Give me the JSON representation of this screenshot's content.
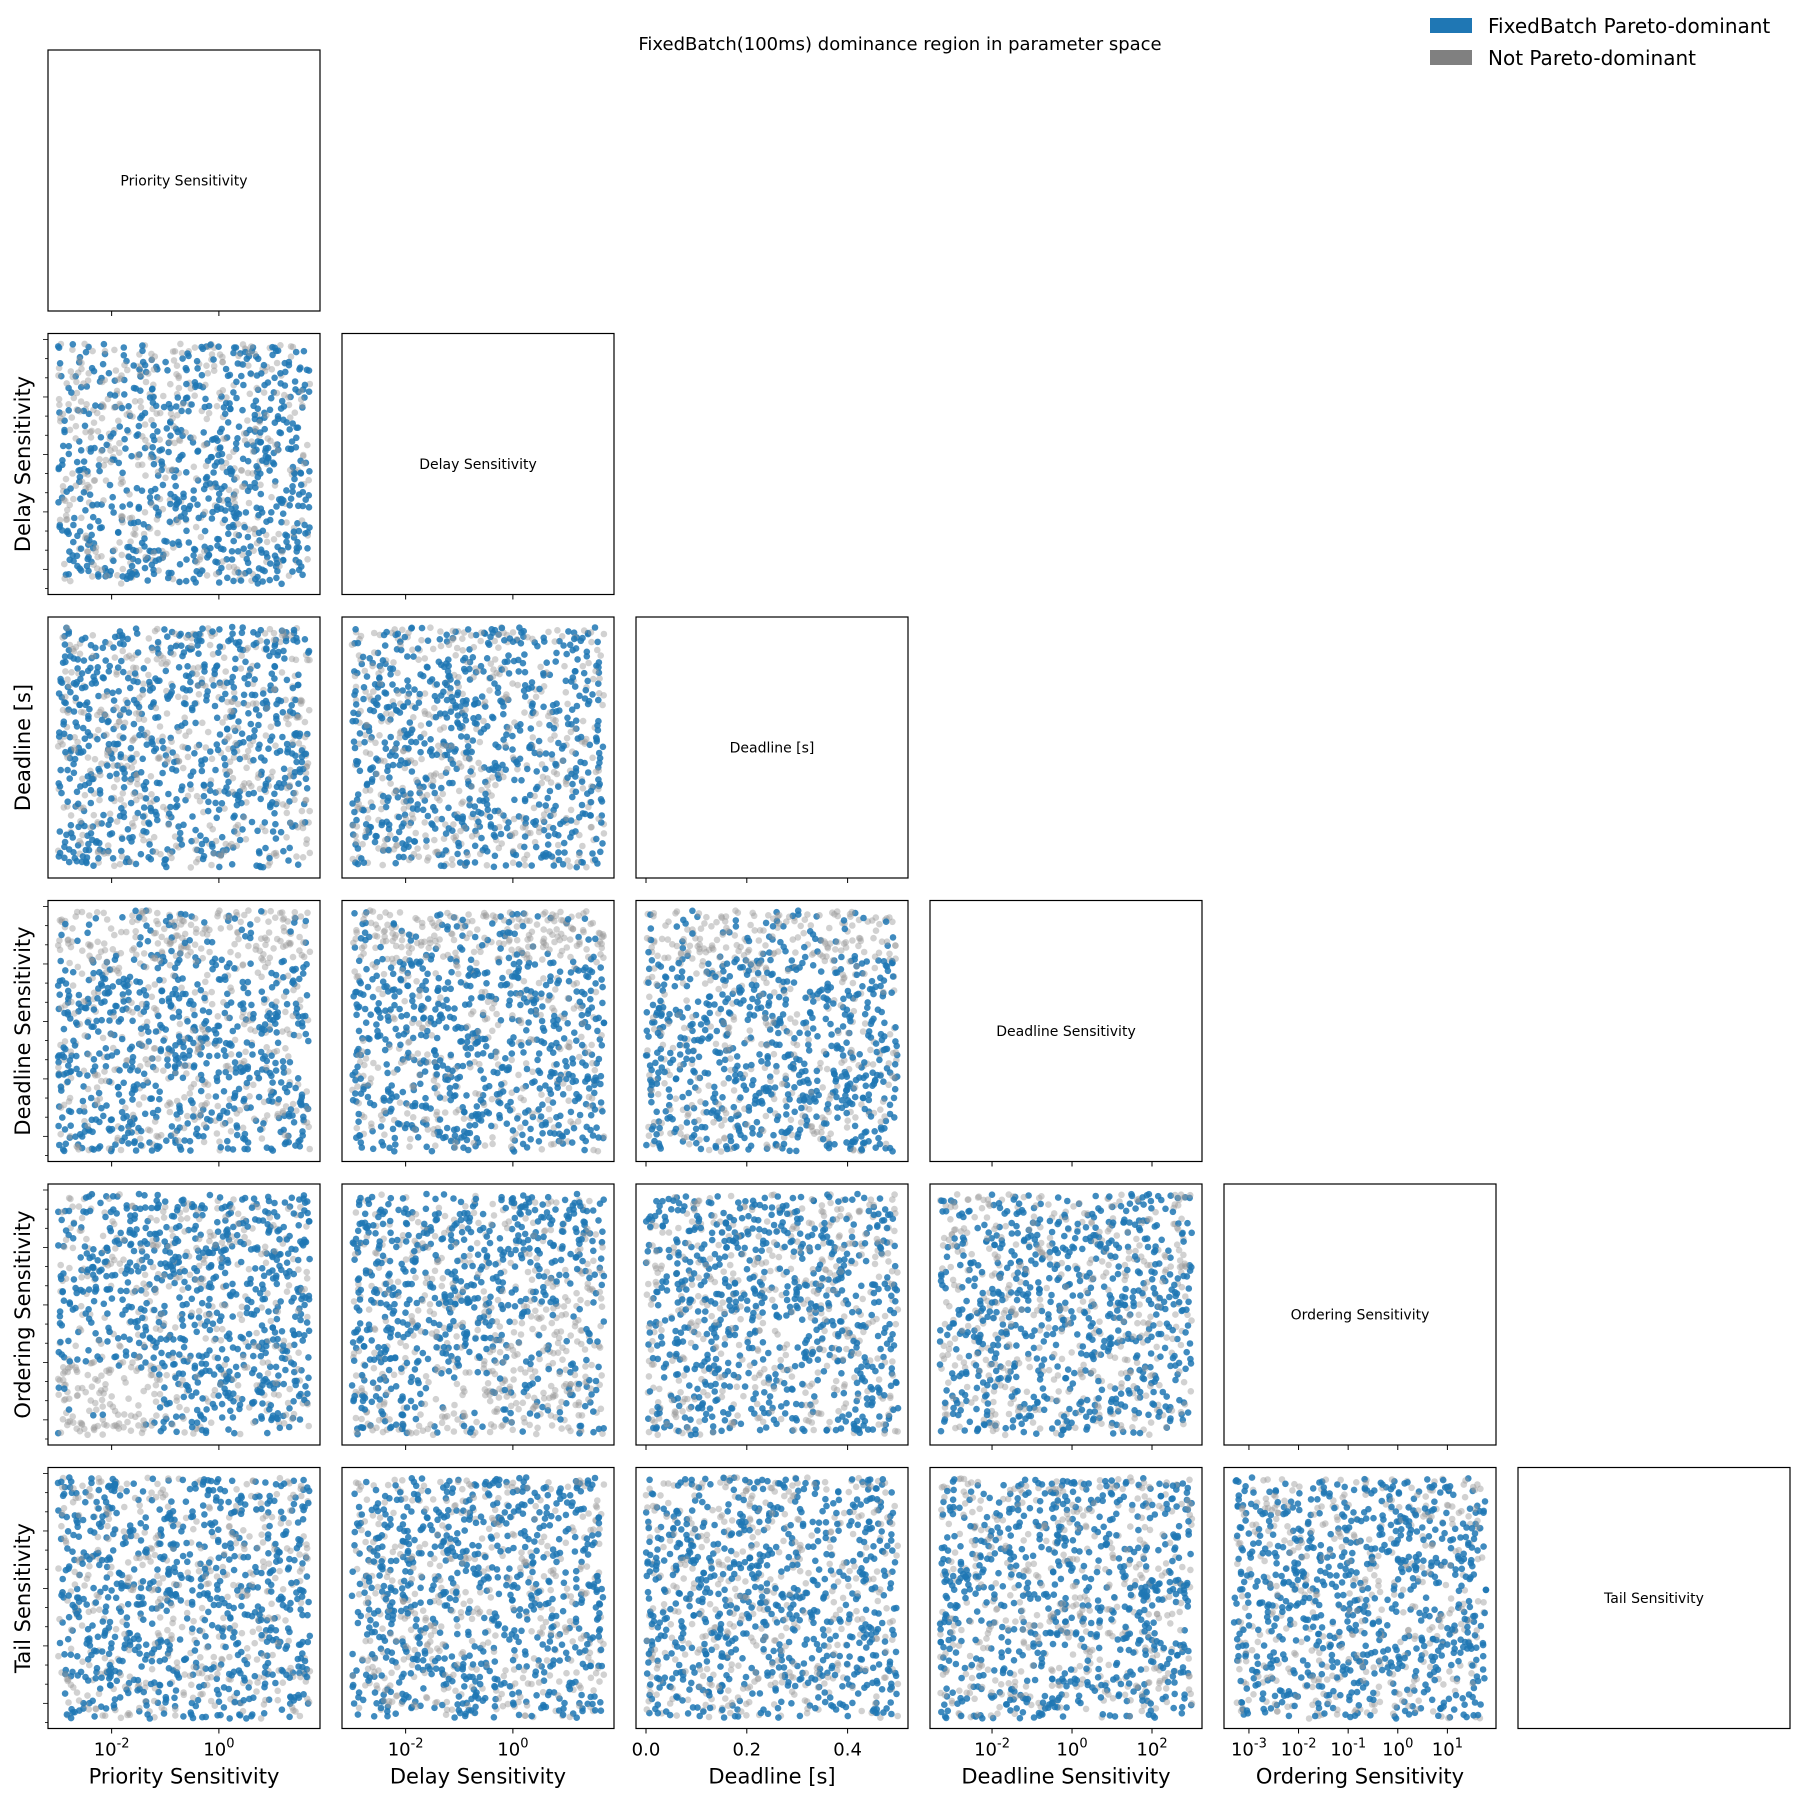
{
  "chart_data": {
    "type": "scatter",
    "title": "FixedBatch(100ms) dominance region in parameter space",
    "legend": {
      "placement": "top-right",
      "entries": [
        {
          "label": "FixedBatch Pareto-dominant",
          "color": "#1f77b4"
        },
        {
          "label": "Not Pareto-dominant",
          "color": "#808080"
        }
      ]
    },
    "colors": {
      "dominant": "#1f77b4",
      "not_dominant": "#9a9a9a"
    },
    "variables": [
      {
        "name": "Priority Sensitivity",
        "scale": "log",
        "range": [
          0.001,
          50
        ],
        "ticks": [
          {
            "value": 0.01,
            "label": "10^-2"
          },
          {
            "value": 1,
            "label": "10^0"
          }
        ]
      },
      {
        "name": "Delay Sensitivity",
        "scale": "log",
        "range": [
          0.001,
          50
        ],
        "ticks": [
          {
            "value": 0.01,
            "label": "10^-2"
          },
          {
            "value": 1,
            "label": "10^0"
          }
        ]
      },
      {
        "name": "Deadline [s]",
        "scale": "linear",
        "range": [
          0,
          0.5
        ],
        "ticks": [
          {
            "value": 0.0,
            "label": "0.0"
          },
          {
            "value": 0.2,
            "label": "0.2"
          },
          {
            "value": 0.4,
            "label": "0.4"
          }
        ]
      },
      {
        "name": "Deadline Sensitivity",
        "scale": "log",
        "range": [
          0.0005,
          1000
        ],
        "ticks": [
          {
            "value": 0.01,
            "label": "10^-2"
          },
          {
            "value": 1,
            "label": "10^0"
          },
          {
            "value": 100,
            "label": "10^2"
          }
        ]
      },
      {
        "name": "Ordering Sensitivity",
        "scale": "log",
        "range": [
          0.0005,
          60
        ],
        "ticks": [
          {
            "value": 0.001,
            "label": "10^-3"
          },
          {
            "value": 0.01,
            "label": "10^-2"
          },
          {
            "value": 0.1,
            "label": "10^-1"
          },
          {
            "value": 1,
            "label": "10^0"
          },
          {
            "value": 10,
            "label": "10^1"
          }
        ]
      },
      {
        "name": "Tail Sensitivity",
        "scale": "log",
        "range": [
          0.001,
          50
        ],
        "ticks": []
      }
    ],
    "dominant_fraction_by_panel": [
      {
        "row": 1,
        "col": 0,
        "fraction": 0.6
      },
      {
        "row": 2,
        "col": 0,
        "fraction": 0.62
      },
      {
        "row": 2,
        "col": 1,
        "fraction": 0.62
      },
      {
        "row": 3,
        "col": 0,
        "fraction": 0.6
      },
      {
        "row": 3,
        "col": 1,
        "fraction": 0.6
      },
      {
        "row": 3,
        "col": 2,
        "fraction": 0.6
      },
      {
        "row": 4,
        "col": 0,
        "fraction": 0.6
      },
      {
        "row": 4,
        "col": 1,
        "fraction": 0.6
      },
      {
        "row": 4,
        "col": 2,
        "fraction": 0.6
      },
      {
        "row": 4,
        "col": 3,
        "fraction": 0.6
      },
      {
        "row": 5,
        "col": 0,
        "fraction": 0.62
      },
      {
        "row": 5,
        "col": 1,
        "fraction": 0.62
      },
      {
        "row": 5,
        "col": 2,
        "fraction": 0.62
      },
      {
        "row": 5,
        "col": 3,
        "fraction": 0.6
      },
      {
        "row": 5,
        "col": 4,
        "fraction": 0.62
      }
    ]
  }
}
